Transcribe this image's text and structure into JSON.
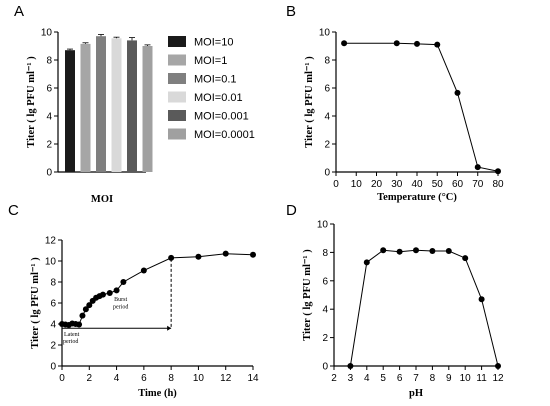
{
  "chart_data": [
    {
      "id": "A",
      "type": "bar",
      "panel_letter": "A",
      "xlabel": "MOI",
      "ylabel": "Titer ( lg PFU ml⁻¹ )",
      "ylim": [
        0,
        10
      ],
      "yticks": [
        0,
        2,
        4,
        6,
        8,
        10
      ],
      "categories": [
        "MOI=10",
        "MOI=1",
        "MOI=0.1",
        "MOI=0.01",
        "MOI=0.001",
        "MOI=0.0001"
      ],
      "values": [
        8.7,
        9.15,
        9.7,
        9.55,
        9.4,
        9.0
      ],
      "errors": [
        0.08,
        0.08,
        0.12,
        0.08,
        0.2,
        0.08
      ],
      "colors": [
        "#1a1a1a",
        "#a6a6a6",
        "#7f7f7f",
        "#d9d9d9",
        "#5a5a5a",
        "#a0a0a0"
      ],
      "legend": [
        "MOI=10",
        "MOI=1",
        "MOI=0.1",
        "MOI=0.01",
        "MOI=0.001",
        "MOI=0.0001"
      ],
      "legend_position": "right"
    },
    {
      "id": "B",
      "type": "line",
      "panel_letter": "B",
      "xlabel": "Temperature (°C)",
      "ylabel": "Titer ( lg PFU ml⁻¹ )",
      "xlim": [
        0,
        80
      ],
      "ylim": [
        0,
        10
      ],
      "xticks": [
        0,
        10,
        20,
        30,
        40,
        50,
        60,
        70,
        80
      ],
      "yticks": [
        0,
        2,
        4,
        6,
        8,
        10
      ],
      "x": [
        4,
        30,
        40,
        50,
        60,
        70,
        80
      ],
      "y": [
        9.2,
        9.2,
        9.15,
        9.1,
        5.65,
        0.35,
        0.05
      ]
    },
    {
      "id": "C",
      "type": "line",
      "panel_letter": "C",
      "xlabel": "Time (h)",
      "ylabel": "Titer ( lg PFU ml⁻¹ )",
      "xlim": [
        0,
        14
      ],
      "ylim": [
        0,
        12
      ],
      "xticks": [
        0,
        2,
        4,
        6,
        8,
        10,
        12,
        14
      ],
      "yticks": [
        0,
        2,
        4,
        6,
        8,
        10,
        12
      ],
      "x": [
        0,
        0.25,
        0.5,
        0.75,
        1,
        1.25,
        1.5,
        1.75,
        2,
        2.25,
        2.5,
        2.75,
        3,
        3.5,
        4,
        4.5,
        6,
        8,
        10,
        12,
        14
      ],
      "y": [
        4.0,
        3.95,
        3.9,
        4.05,
        4.0,
        3.95,
        4.8,
        5.4,
        5.8,
        6.2,
        6.5,
        6.65,
        6.8,
        6.95,
        7.2,
        8.0,
        9.1,
        10.3,
        10.4,
        10.7,
        10.6
      ],
      "annotations": {
        "latent": [
          "Latent",
          "period"
        ],
        "burst": [
          "Burst",
          "period"
        ]
      }
    },
    {
      "id": "D",
      "type": "line",
      "panel_letter": "D",
      "xlabel": "pH",
      "ylabel": "Titer ( lg PFU ml⁻¹ )",
      "xlim": [
        2,
        12
      ],
      "ylim": [
        0,
        10
      ],
      "xticks": [
        2,
        3,
        4,
        5,
        6,
        7,
        8,
        9,
        10,
        11,
        12
      ],
      "yticks": [
        0,
        2,
        4,
        6,
        8,
        10
      ],
      "x": [
        3,
        4,
        5,
        6,
        7,
        8,
        9,
        10,
        11,
        12
      ],
      "y": [
        0,
        7.3,
        8.15,
        8.05,
        8.15,
        8.1,
        8.1,
        7.6,
        4.7,
        0
      ]
    }
  ]
}
